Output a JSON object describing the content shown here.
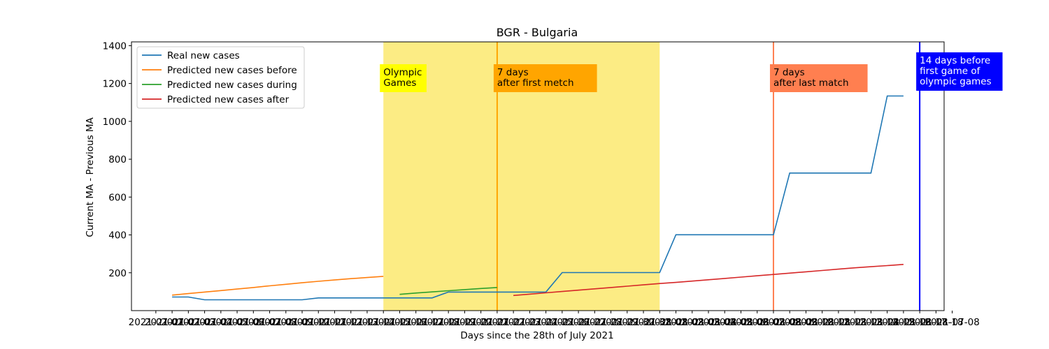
{
  "chart_data": {
    "type": "line",
    "title": "BGR - Bulgaria",
    "xlabel": "Days since the 28th of July 2021",
    "ylabel": "Current MA - Previous MA",
    "ylim": [
      0,
      1420
    ],
    "yticks": [
      200,
      400,
      600,
      800,
      1000,
      1200,
      1400
    ],
    "xlim": [
      -2.5,
      47.5
    ],
    "x_tick_labels": [
      "2021-07-01",
      "2021-07-02",
      "2021-07-03",
      "2021-07-04",
      "2021-07-05",
      "2021-07-06",
      "2021-07-07",
      "2021-07-08",
      "2021-07-09",
      "2021-07-10",
      "2021-07-11",
      "2021-07-12",
      "2021-07-13",
      "2021-07-14",
      "2021-07-15",
      "2021-07-16",
      "2021-07-17",
      "2021-07-18",
      "2021-07-19",
      "2021-07-20",
      "2021-07-21",
      "2021-07-22",
      "2021-07-23",
      "2021-07-24",
      "2021-07-25",
      "2021-07-26",
      "2021-07-27",
      "2021-07-28",
      "2021-07-29",
      "2021-07-30",
      "2021-07-31",
      "2021-08-01",
      "2021-08-02",
      "2021-08-03",
      "2021-08-04",
      "2021-08-05",
      "2021-08-06",
      "2021-08-07",
      "2021-08-08",
      "2021-08-09",
      "2021-08-10",
      "2021-08-11",
      "2021-08-12",
      "2021-08-13",
      "2021-08-14",
      "2021-08-15",
      "2021-08-16",
      "2021-08-17",
      "2021-08-18",
      "2021-07-08"
    ],
    "series": [
      {
        "name": "Real new cases",
        "color": "#1f77b4",
        "x": [
          0,
          1,
          2,
          3,
          4,
          5,
          6,
          7,
          8,
          9,
          10,
          11,
          12,
          13,
          14,
          15,
          16,
          17,
          18,
          19,
          20,
          21,
          22,
          23,
          24,
          25,
          26,
          27,
          28,
          29,
          30,
          31,
          32,
          33,
          34,
          35,
          36,
          37,
          38,
          39,
          40,
          41,
          42,
          43,
          44,
          45
        ],
        "values": [
          72,
          72,
          57,
          57,
          57,
          57,
          57,
          57,
          57,
          67,
          67,
          67,
          67,
          67,
          67,
          67,
          67,
          98,
          98,
          98,
          98,
          98,
          98,
          98,
          201,
          201,
          201,
          201,
          201,
          201,
          201,
          401,
          401,
          401,
          401,
          401,
          401,
          401,
          727,
          727,
          727,
          727,
          727,
          727,
          1134,
          1134
        ]
      },
      {
        "name": "Predicted new cases before",
        "color": "#ff7f0e",
        "x": [
          0,
          1,
          2,
          3,
          4,
          5,
          6,
          7,
          8,
          9,
          10,
          11,
          12,
          13
        ],
        "values": [
          82,
          90,
          98,
          106,
          114,
          122,
          131,
          139,
          147,
          155,
          162,
          169,
          175,
          181
        ]
      },
      {
        "name": "Predicted new cases during",
        "color": "#2ca02c",
        "x": [
          14,
          15,
          16,
          17,
          18,
          19,
          20
        ],
        "values": [
          86,
          93,
          99,
          105,
          111,
          117,
          122
        ]
      },
      {
        "name": "Predicted new cases after",
        "color": "#d62728",
        "x": [
          21,
          22,
          23,
          24,
          25,
          26,
          27,
          28,
          29,
          30,
          31,
          32,
          33,
          34,
          35,
          36,
          37,
          38,
          39,
          40,
          41,
          42,
          43,
          44,
          45
        ],
        "values": [
          80,
          87,
          94,
          101,
          108,
          115,
          122,
          129,
          136,
          143,
          149,
          156,
          163,
          170,
          177,
          184,
          191,
          198,
          205,
          212,
          219,
          226,
          232,
          238,
          244
        ]
      }
    ],
    "annotations": [
      {
        "id": "olympic-games",
        "text_lines": [
          "Olympic",
          "Games"
        ],
        "color": "#ffff00",
        "text_color": "#000000",
        "x": 13
      },
      {
        "id": "first-match",
        "text_lines": [
          "7 days",
          "after first metch"
        ],
        "color": "#ffa500",
        "text_color": "#000000",
        "x": 20
      },
      {
        "id": "last-match",
        "text_lines": [
          "7 days",
          "after last match"
        ],
        "color": "#ff7f50",
        "text_color": "#000000",
        "x": 37
      },
      {
        "id": "before-games",
        "text_lines": [
          "14 days before",
          "first game of",
          "olympic games"
        ],
        "color": "#0000ff",
        "text_color": "#ffffff",
        "x": 46
      }
    ],
    "shaded_region": {
      "x_start": 13,
      "x_end": 30,
      "color": "#fcec84"
    },
    "vertical_lines": [
      {
        "x": 20,
        "color": "#ffa500"
      },
      {
        "x": 37,
        "color": "#ff7f50"
      },
      {
        "x": 46,
        "color": "#0000ff"
      }
    ],
    "legend_position": "upper-left"
  }
}
